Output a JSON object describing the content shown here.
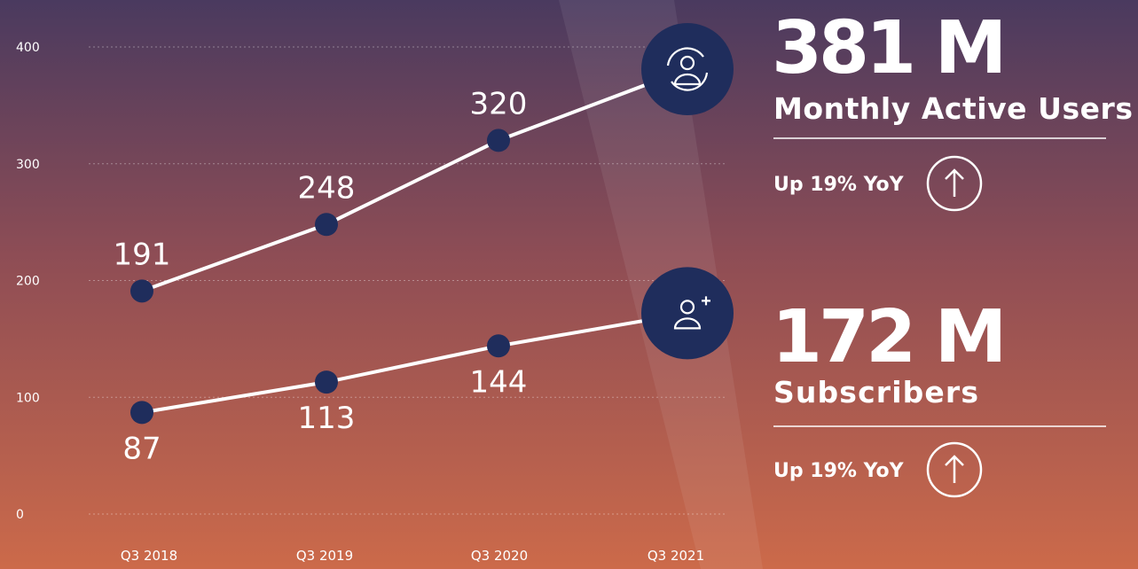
{
  "chart_data": {
    "type": "line",
    "categories": [
      "Q3 2018",
      "Q3 2019",
      "Q3 2020",
      "Q3 2021"
    ],
    "ylim": [
      0,
      400
    ],
    "yticks": [
      0,
      100,
      200,
      300,
      400
    ],
    "grid": true,
    "series": [
      {
        "name": "Monthly Active Users",
        "color": "#ffffff",
        "marker_color": "#1f2d5c",
        "values": [
          191,
          248,
          320,
          381
        ],
        "value_labels": [
          "191",
          "248",
          "320",
          "381 M"
        ],
        "annotation": "Up 19% YoY"
      },
      {
        "name": "Subscribers",
        "color": "#ffffff",
        "marker_color": "#1f2d5c",
        "values": [
          87,
          113,
          144,
          172
        ],
        "value_labels": [
          "87",
          "113",
          "144",
          "172 M"
        ],
        "annotation": "Up 19% YoY"
      }
    ]
  }
}
